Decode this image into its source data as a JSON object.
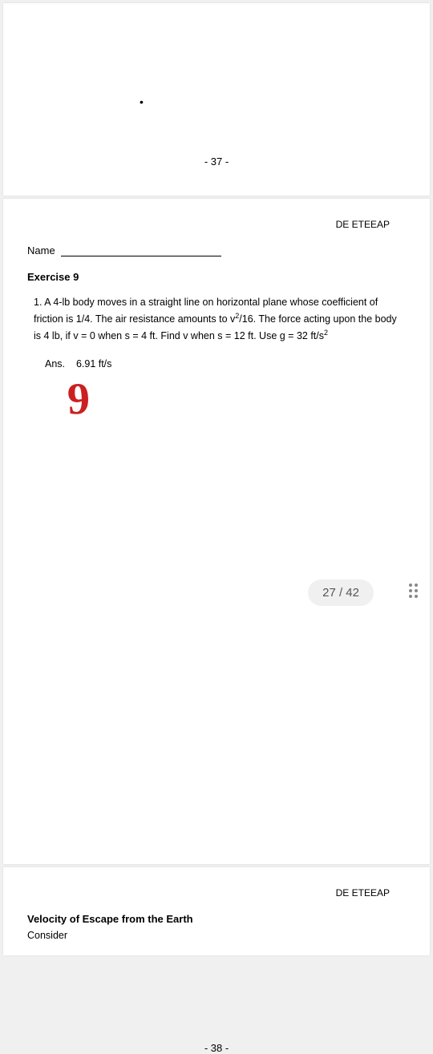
{
  "page37": {
    "pageNumber": "- 37 -",
    "headerRight": "DE ETEEAP",
    "nameLabel": "Name",
    "exerciseTitle": "Exercise 9",
    "problemNumber": "1.",
    "problemText": "A 4-lb body moves in a straight line on horizontal plane whose coefficient of friction is 1/4. The air resistance amounts to v²/16. The force acting upon the body is 4 lb, if v = 0 when s = 4 ft. Find v when s = 12 ft. Use g = 32 ft/s²",
    "answerLabel": "Ans.",
    "answerValue": "6.91 ft/s",
    "handwritten": "9"
  },
  "pageIndicator": {
    "current": "27",
    "total": "42",
    "display": "27 / 42"
  },
  "page38": {
    "pageNumber": "- 38 -",
    "headerRight": "DE ETEEAP",
    "title": "Velocity of Escape from the Earth",
    "bodyStart": "Consider"
  }
}
